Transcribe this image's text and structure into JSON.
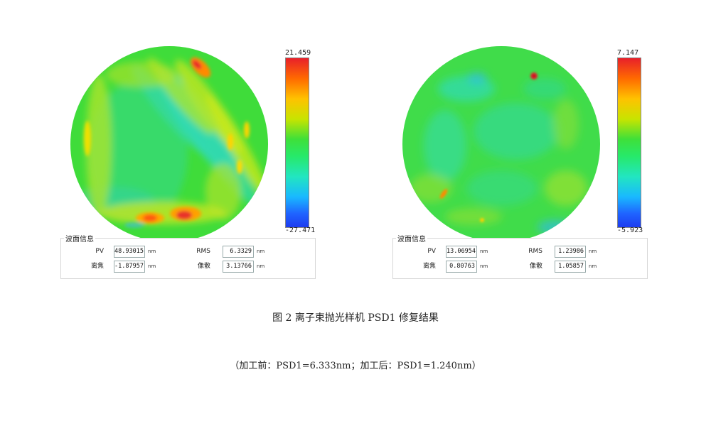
{
  "panels": {
    "left": {
      "colorbar": {
        "max": "21.459",
        "min": "-27.471"
      },
      "info": {
        "title": "波面信息",
        "pv_label": "PV",
        "pv_value": "48.93015",
        "pv_unit": "nm",
        "rms_label": "RMS",
        "rms_value": "6.3329",
        "rms_unit": "nm",
        "defocus_label": "离焦",
        "defocus_value": "-1.87957",
        "defocus_unit": "nm",
        "astig_label": "像散",
        "astig_value": "3.13766",
        "astig_unit": "nm"
      }
    },
    "right": {
      "colorbar": {
        "max": "7.147",
        "min": "-5.923"
      },
      "info": {
        "title": "波面信息",
        "pv_label": "PV",
        "pv_value": "13.06954",
        "pv_unit": "nm",
        "rms_label": "RMS",
        "rms_value": "1.23986",
        "rms_unit": "nm",
        "defocus_label": "离焦",
        "defocus_value": "0.80763",
        "defocus_unit": "nm",
        "astig_label": "像散",
        "astig_value": "1.05857",
        "astig_unit": "nm"
      }
    }
  },
  "caption": {
    "title": "图 2  离子束抛光样机 PSD1 修复结果",
    "subtitle": "（加工前：PSD1=6.333nm；加工后：PSD1=1.240nm）"
  }
}
